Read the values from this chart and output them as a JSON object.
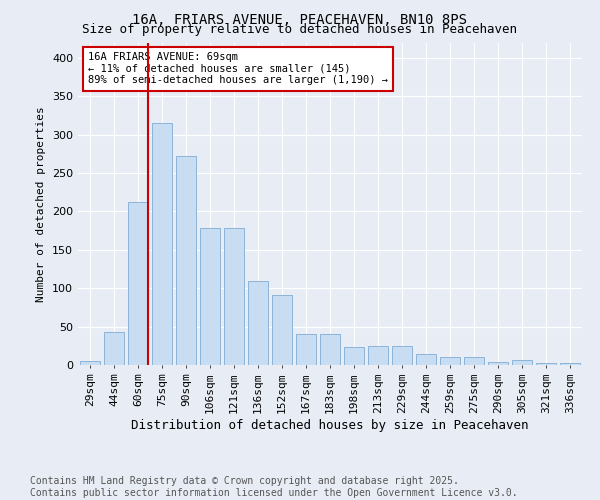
{
  "title": "16A, FRIARS AVENUE, PEACEHAVEN, BN10 8PS",
  "subtitle": "Size of property relative to detached houses in Peacehaven",
  "xlabel": "Distribution of detached houses by size in Peacehaven",
  "ylabel": "Number of detached properties",
  "categories": [
    "29sqm",
    "44sqm",
    "60sqm",
    "75sqm",
    "90sqm",
    "106sqm",
    "121sqm",
    "136sqm",
    "152sqm",
    "167sqm",
    "183sqm",
    "198sqm",
    "213sqm",
    "229sqm",
    "244sqm",
    "259sqm",
    "275sqm",
    "290sqm",
    "305sqm",
    "321sqm",
    "336sqm"
  ],
  "values": [
    5,
    43,
    212,
    315,
    272,
    179,
    179,
    110,
    91,
    40,
    40,
    23,
    25,
    25,
    14,
    11,
    10,
    4,
    7,
    2,
    3
  ],
  "bar_color": "#c9ddf2",
  "bar_edge_color": "#8ab4d9",
  "vline_color": "#cc0000",
  "vline_x_index": 2,
  "annotation_text": "16A FRIARS AVENUE: 69sqm\n← 11% of detached houses are smaller (145)\n89% of semi-detached houses are larger (1,190) →",
  "annotation_box_facecolor": "white",
  "annotation_box_edgecolor": "#cc0000",
  "ylim": [
    0,
    420
  ],
  "yticks": [
    0,
    50,
    100,
    150,
    200,
    250,
    300,
    350,
    400
  ],
  "background_color": "#e8edf5",
  "plot_bg_color": "#e8edf5",
  "grid_color": "white",
  "footer": "Contains HM Land Registry data © Crown copyright and database right 2025.\nContains public sector information licensed under the Open Government Licence v3.0.",
  "title_fontsize": 10,
  "subtitle_fontsize": 9,
  "xlabel_fontsize": 9,
  "ylabel_fontsize": 8,
  "tick_fontsize": 8,
  "annotation_fontsize": 7.5,
  "footer_fontsize": 7
}
